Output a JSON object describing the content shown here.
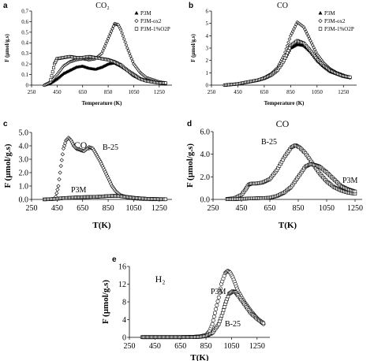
{
  "chart_data": [
    {
      "type": "scatter",
      "panel": "a",
      "title": "CO₂",
      "xlabel": "Temperature (K)",
      "ylabel": "F (µmol/g.s)",
      "xlim": [
        250,
        1350
      ],
      "ylim": [
        0,
        0.7
      ],
      "xticks": [
        250,
        450,
        650,
        850,
        1050,
        1250
      ],
      "yticks": [
        0,
        0.1,
        0.2,
        0.3,
        0.4,
        0.5,
        0.6,
        0.7
      ],
      "xtick_labels": [
        "250",
        "450",
        "650",
        "850",
        "1050",
        "1250"
      ],
      "ytick_labels": [
        "0",
        "0.1",
        "0.2",
        "0.3",
        "0.4",
        "0.5",
        "0.6",
        "0.7"
      ],
      "legend_position": "top-right",
      "series": [
        {
          "name": "P3M",
          "marker": "triangle",
          "x": [
            350,
            400,
            450,
            500,
            550,
            600,
            650,
            700,
            750,
            800,
            850,
            900,
            950,
            1000,
            1050,
            1100,
            1150,
            1200,
            1250,
            1300
          ],
          "y": [
            0.0,
            0.02,
            0.06,
            0.11,
            0.14,
            0.17,
            0.18,
            0.16,
            0.15,
            0.17,
            0.2,
            0.21,
            0.18,
            0.14,
            0.09,
            0.06,
            0.04,
            0.03,
            0.02,
            0.01
          ]
        },
        {
          "name": "P3M-ox2",
          "marker": "diamond",
          "x": [
            350,
            400,
            450,
            500,
            550,
            600,
            650,
            700,
            750,
            800,
            850,
            900,
            930,
            950,
            1000,
            1050,
            1100,
            1150,
            1200,
            1250,
            1300
          ],
          "y": [
            0.0,
            0.03,
            0.1,
            0.18,
            0.22,
            0.24,
            0.25,
            0.24,
            0.25,
            0.3,
            0.44,
            0.58,
            0.57,
            0.52,
            0.35,
            0.2,
            0.12,
            0.07,
            0.05,
            0.03,
            0.02
          ]
        },
        {
          "name": "P3M-1%O2P",
          "marker": "square",
          "x": [
            400,
            430,
            450,
            500,
            550,
            600,
            650,
            700,
            750,
            800,
            850,
            900,
            950,
            1000,
            1050,
            1100,
            1150,
            1200,
            1250,
            1300
          ],
          "y": [
            0.05,
            0.2,
            0.25,
            0.26,
            0.27,
            0.26,
            0.26,
            0.27,
            0.26,
            0.25,
            0.24,
            0.22,
            0.19,
            0.14,
            0.1,
            0.06,
            0.04,
            0.03,
            0.02,
            0.02
          ]
        }
      ]
    },
    {
      "type": "scatter",
      "panel": "b",
      "title": "CO",
      "xlabel": "Temperature (K)",
      "ylabel": "F (µmol/g.s)",
      "xlim": [
        250,
        1350
      ],
      "ylim": [
        0,
        6
      ],
      "xticks": [
        250,
        450,
        650,
        850,
        1050,
        1250
      ],
      "yticks": [
        0,
        1,
        2,
        3,
        4,
        5,
        6
      ],
      "xtick_labels": [
        "250",
        "450",
        "650",
        "850",
        "1050",
        "1250"
      ],
      "ytick_labels": [
        "0",
        "1",
        "2",
        "3",
        "4",
        "5",
        "6"
      ],
      "legend_position": "top-right",
      "series": [
        {
          "name": "P3M",
          "marker": "triangle",
          "x": [
            350,
            400,
            450,
            500,
            550,
            600,
            650,
            700,
            750,
            800,
            850,
            900,
            950,
            1000,
            1050,
            1100,
            1150,
            1200,
            1250,
            1300
          ],
          "y": [
            0.0,
            0.05,
            0.1,
            0.2,
            0.3,
            0.4,
            0.55,
            0.8,
            1.2,
            2.0,
            3.0,
            3.3,
            3.2,
            2.7,
            2.0,
            1.5,
            1.1,
            0.9,
            0.7,
            0.6
          ]
        },
        {
          "name": "P3M-ox2",
          "marker": "diamond",
          "x": [
            350,
            400,
            450,
            500,
            550,
            600,
            650,
            700,
            750,
            800,
            850,
            900,
            950,
            1000,
            1050,
            1100,
            1150,
            1200,
            1250,
            1300
          ],
          "y": [
            0.0,
            0.05,
            0.1,
            0.2,
            0.3,
            0.4,
            0.6,
            0.9,
            1.4,
            2.4,
            4.0,
            5.1,
            4.7,
            3.6,
            2.5,
            1.8,
            1.3,
            1.0,
            0.8,
            0.6
          ]
        },
        {
          "name": "P3M-1%O2P",
          "marker": "square",
          "x": [
            350,
            400,
            450,
            500,
            550,
            600,
            650,
            700,
            750,
            800,
            850,
            900,
            950,
            1000,
            1050,
            1100,
            1150,
            1200,
            1250,
            1300
          ],
          "y": [
            0.0,
            0.05,
            0.1,
            0.2,
            0.3,
            0.4,
            0.55,
            0.8,
            1.2,
            2.0,
            3.2,
            3.6,
            3.4,
            2.8,
            2.1,
            1.6,
            1.2,
            0.95,
            0.75,
            0.65
          ]
        }
      ]
    },
    {
      "type": "scatter",
      "panel": "c",
      "title": "CO₂",
      "xlabel": "T(K)",
      "ylabel": "F (µmol/g.s)",
      "xlim": [
        250,
        1350
      ],
      "ylim": [
        0,
        5
      ],
      "xticks": [
        250,
        450,
        650,
        850,
        1050,
        1250
      ],
      "yticks": [
        0,
        1,
        2,
        3,
        4,
        5
      ],
      "xtick_labels": [
        "250",
        "450",
        "650",
        "850",
        "1050",
        "1250"
      ],
      "ytick_labels": [
        "0.0",
        "1.0",
        "2.0",
        "3.0",
        "4.0",
        "5.0"
      ],
      "annotations": [
        "B-25",
        "P3M"
      ],
      "series": [
        {
          "name": "B-25",
          "marker": "diamond",
          "x": [
            440,
            460,
            480,
            500,
            520,
            540,
            560,
            580,
            600,
            630,
            660,
            700,
            730,
            760,
            790,
            820,
            850,
            880,
            910,
            950,
            1000,
            1050,
            1100,
            1150,
            1200,
            1250,
            1300
          ],
          "y": [
            0.2,
            1.0,
            2.5,
            3.8,
            4.4,
            4.6,
            4.4,
            4.0,
            3.8,
            3.7,
            3.6,
            3.9,
            3.8,
            3.3,
            2.8,
            2.2,
            1.6,
            1.0,
            0.6,
            0.3,
            0.15,
            0.08,
            0.05,
            0.03,
            0.02,
            0.02,
            0.01
          ]
        },
        {
          "name": "P3M",
          "marker": "square",
          "x": [
            350,
            400,
            450,
            500,
            550,
            600,
            650,
            700,
            750,
            800,
            850,
            900,
            950,
            1000,
            1050,
            1100,
            1150,
            1200,
            1250,
            1300
          ],
          "y": [
            0.0,
            0.02,
            0.05,
            0.1,
            0.12,
            0.15,
            0.17,
            0.18,
            0.19,
            0.22,
            0.25,
            0.27,
            0.24,
            0.18,
            0.12,
            0.08,
            0.05,
            0.03,
            0.02,
            0.01
          ]
        }
      ]
    },
    {
      "type": "scatter",
      "panel": "d",
      "title": "CO",
      "xlabel": "T(K)",
      "ylabel": "F (µmol/g.s)",
      "xlim": [
        250,
        1300
      ],
      "ylim": [
        0,
        6
      ],
      "xticks": [
        250,
        450,
        650,
        850,
        1050,
        1250
      ],
      "yticks": [
        0,
        2,
        4,
        6
      ],
      "xtick_labels": [
        "250",
        "450",
        "650",
        "850",
        "1050",
        "1250"
      ],
      "ytick_labels": [
        "0.0",
        "2.0",
        "4.0",
        "6.0"
      ],
      "annotations": [
        "B-25",
        "P3M"
      ],
      "series": [
        {
          "name": "B-25",
          "marker": "square",
          "x": [
            350,
            400,
            450,
            480,
            500,
            520,
            550,
            600,
            650,
            700,
            750,
            800,
            830,
            860,
            900,
            950,
            1000,
            1050,
            1100,
            1150,
            1200,
            1250
          ],
          "y": [
            0.05,
            0.1,
            0.4,
            0.9,
            1.3,
            1.4,
            1.4,
            1.5,
            1.8,
            2.6,
            3.7,
            4.6,
            4.8,
            4.6,
            4.1,
            3.2,
            2.3,
            1.6,
            1.1,
            0.8,
            0.6,
            0.5
          ]
        },
        {
          "name": "P3M",
          "marker": "square",
          "x": [
            350,
            400,
            450,
            500,
            550,
            600,
            650,
            700,
            750,
            800,
            850,
            900,
            930,
            950,
            980,
            1000,
            1050,
            1100,
            1150,
            1200,
            1250
          ],
          "y": [
            0.02,
            0.02,
            0.05,
            0.08,
            0.1,
            0.12,
            0.15,
            0.3,
            0.6,
            1.1,
            2.0,
            2.9,
            3.1,
            3.1,
            3.0,
            2.9,
            2.4,
            1.8,
            1.2,
            0.9,
            0.7
          ]
        }
      ]
    },
    {
      "type": "scatter",
      "panel": "e",
      "title": "H₂",
      "xlabel": "T(K)",
      "ylabel": "F (µmol/g.s)",
      "xlim": [
        250,
        1350
      ],
      "ylim": [
        0,
        16
      ],
      "xticks": [
        250,
        450,
        650,
        850,
        1050,
        1250
      ],
      "yticks": [
        0,
        4,
        8,
        12,
        16
      ],
      "xtick_labels": [
        "250",
        "450",
        "650",
        "850",
        "1050",
        "1250"
      ],
      "ytick_labels": [
        "0",
        "4",
        "8",
        "12",
        "16"
      ],
      "annotations": [
        "P3M",
        "B-25"
      ],
      "series": [
        {
          "name": "P3M",
          "marker": "circle",
          "x": [
            350,
            450,
            550,
            650,
            750,
            800,
            850,
            880,
            900,
            920,
            950,
            970,
            1000,
            1020,
            1040,
            1060,
            1080,
            1100,
            1150,
            1200,
            1250,
            1300
          ],
          "y": [
            0.05,
            0.05,
            0.05,
            0.05,
            0.1,
            0.2,
            0.5,
            1.5,
            3.0,
            5.5,
            9.0,
            12.0,
            14.5,
            15.0,
            14.6,
            13.5,
            12.0,
            10.5,
            8.0,
            6.0,
            4.3,
            3.0
          ]
        },
        {
          "name": "B-25",
          "marker": "square",
          "x": [
            350,
            450,
            550,
            650,
            750,
            800,
            850,
            900,
            950,
            980,
            1000,
            1030,
            1060,
            1080,
            1100,
            1150,
            1200,
            1250,
            1300
          ],
          "y": [
            0.05,
            0.05,
            0.05,
            0.05,
            0.05,
            0.1,
            0.3,
            1.0,
            3.0,
            5.5,
            7.5,
            9.8,
            10.4,
            10.2,
            9.5,
            7.5,
            5.5,
            4.2,
            3.2
          ]
        }
      ]
    }
  ]
}
